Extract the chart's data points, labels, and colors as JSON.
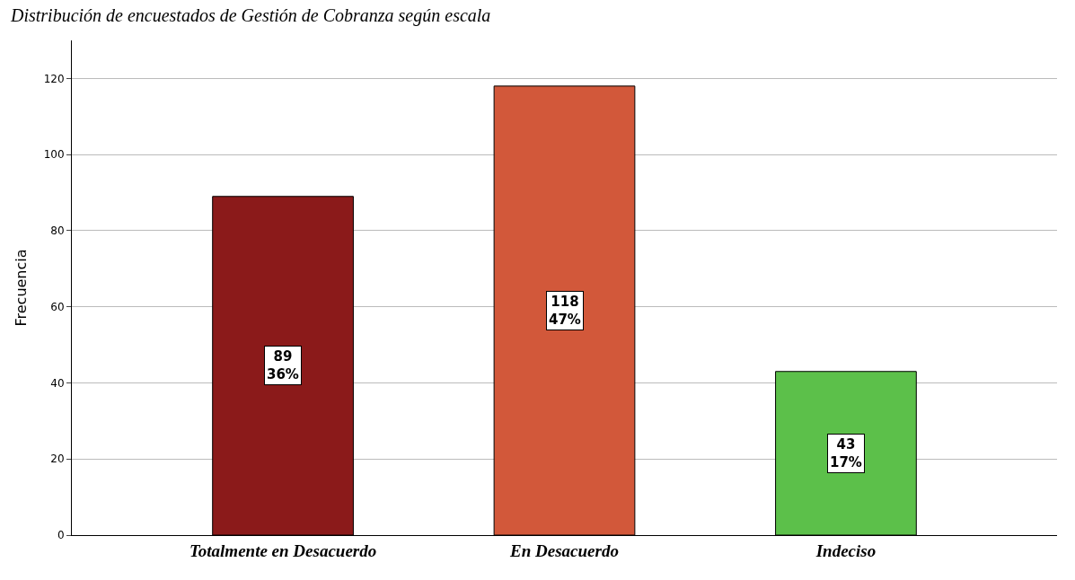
{
  "chart_data": {
    "type": "bar",
    "title": "Distribución de encuestados de Gestión de Cobranza según escala",
    "ylabel": "Frecuencia",
    "categories": [
      "Totalmente en Desacuerdo",
      "En Desacuerdo",
      "Indeciso"
    ],
    "values": [
      89,
      118,
      43
    ],
    "colors": [
      "#8b1a1a",
      "#d2583a",
      "#5cc04a"
    ],
    "value_labels": [
      "89\n36%",
      "118\n47%",
      "43\n17%"
    ],
    "ylim": [
      0,
      130
    ],
    "yticks": [
      0,
      20,
      40,
      60,
      80,
      100,
      120
    ],
    "grid": "y"
  }
}
